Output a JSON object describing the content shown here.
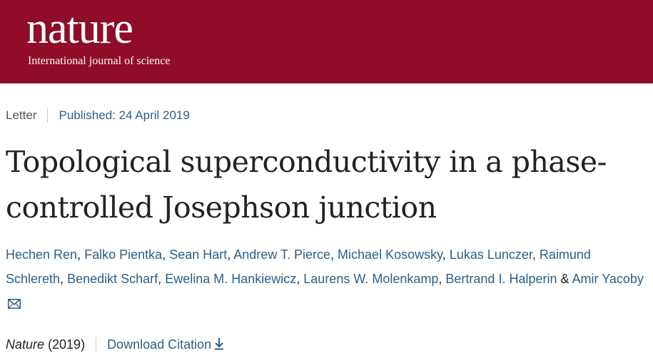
{
  "header": {
    "logo_text": "nature",
    "tagline": "International journal of science",
    "background_color": "#8f0d26"
  },
  "article": {
    "type": "Letter",
    "published": "Published: 24 April 2019",
    "title": "Topological superconductivity in a phase-controlled Josephson junction",
    "authors": [
      "Hechen Ren",
      "Falko Pientka",
      "Sean Hart",
      "Andrew T. Pierce",
      "Michael Kosowsky",
      "Lukas Lunczer",
      "Raimund Schlereth",
      "Benedikt Scharf",
      "Ewelina M. Hankiewicz",
      "Laurens W. Molenkamp",
      "Bertrand I. Halperin",
      "Amir Yacoby"
    ],
    "author_separator": ",",
    "author_final_joiner": "&",
    "corresponding_icon": "mail-icon",
    "journal": "Nature",
    "year": "(2019)",
    "download_citation": "Download Citation",
    "download_icon": "download-arrow-icon",
    "link_color": "#2d5f86"
  }
}
